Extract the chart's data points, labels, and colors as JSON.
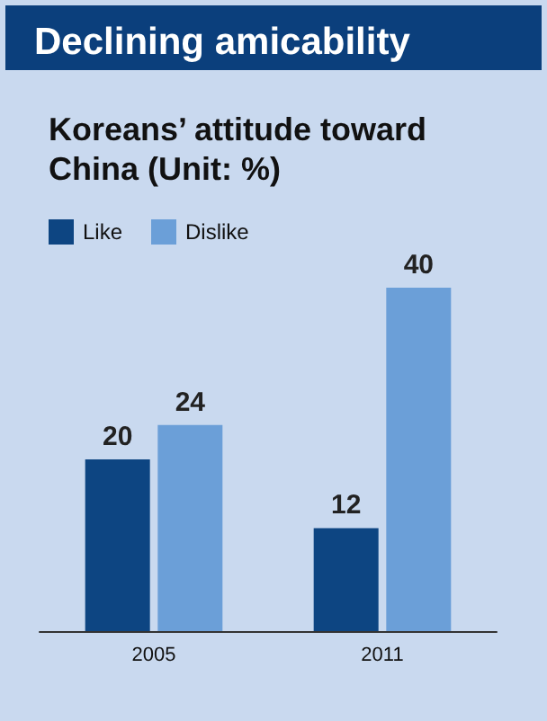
{
  "chart_data": {
    "type": "bar",
    "title": "Declining amicability",
    "subtitle": "Koreans’ attitude toward China (Unit: %)",
    "categories": [
      "2005",
      "2011"
    ],
    "series": [
      {
        "name": "Like",
        "color": "#0d4582",
        "values": [
          20,
          12
        ]
      },
      {
        "name": "Dislike",
        "color": "#6b9fd8",
        "values": [
          24,
          40
        ]
      }
    ],
    "data_labels": true,
    "legend": "top left"
  }
}
